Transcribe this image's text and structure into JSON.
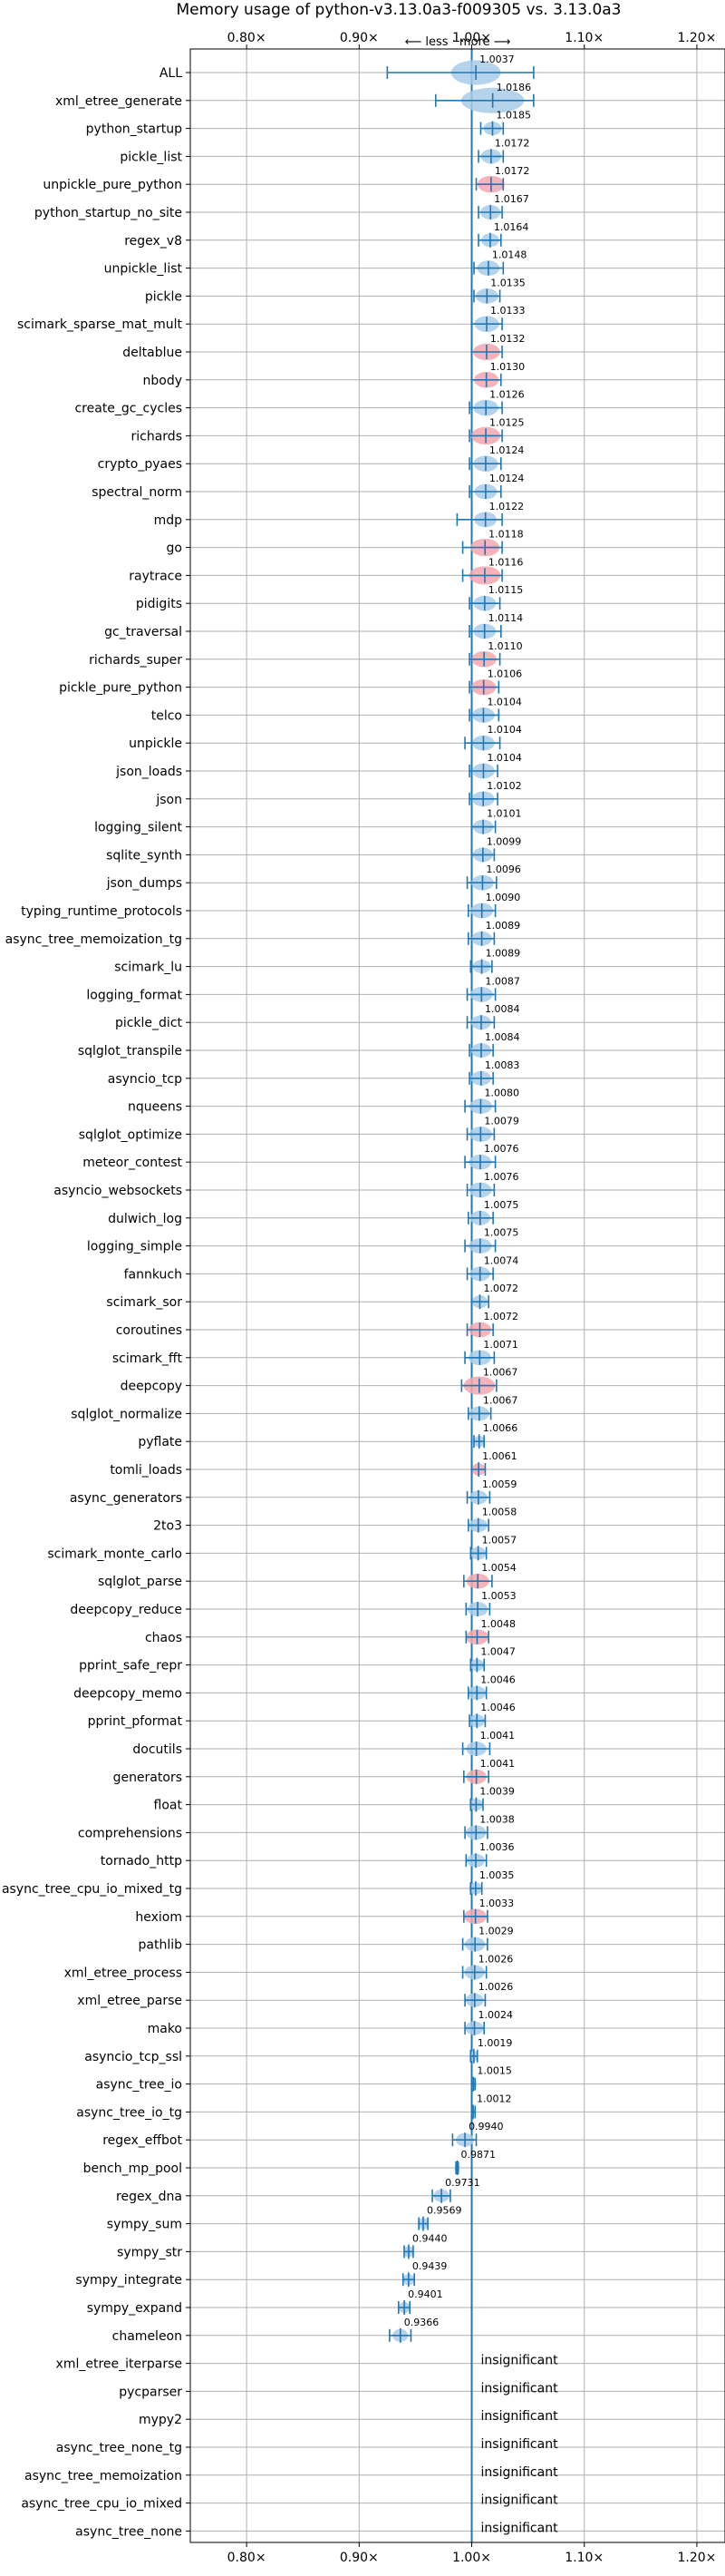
{
  "chart_data": {
    "type": "violin",
    "title": "Memory usage of python-v3.13.0a3-f009305 vs. 3.13.0a3",
    "xlim": [
      0.75,
      1.225
    ],
    "xticks": [
      0.8,
      0.9,
      1.0,
      1.1,
      1.2
    ],
    "xtick_labels": [
      "0.80×",
      "0.90×",
      "1.00×",
      "1.10×",
      "1.20×"
    ],
    "direction_label": "⟵ less · more ⟶",
    "grid": true,
    "colors": {
      "accent": "#1f77b4",
      "violin_normal": "#a8cbe8",
      "violin_highlight": "#f4a6ad",
      "grid": "#b0b0b0",
      "reference_line": "#1f77b4"
    },
    "insignificant_label": "insignificant",
    "benchmarks": [
      {
        "name": "ALL",
        "ratio": 1.0037,
        "low": 0.925,
        "high": 1.055,
        "width": 0.022,
        "color": "normal"
      },
      {
        "name": "xml_etree_generate",
        "ratio": 1.0186,
        "low": 0.968,
        "high": 1.055,
        "width": 0.028,
        "color": "normal"
      },
      {
        "name": "python_startup",
        "ratio": 1.0185,
        "low": 1.008,
        "high": 1.028,
        "width": 0.008,
        "color": "normal"
      },
      {
        "name": "pickle_list",
        "ratio": 1.0172,
        "low": 1.006,
        "high": 1.028,
        "width": 0.009,
        "color": "normal"
      },
      {
        "name": "unpickle_pure_python",
        "ratio": 1.0172,
        "low": 1.004,
        "high": 1.028,
        "width": 0.012,
        "color": "highlight"
      },
      {
        "name": "python_startup_no_site",
        "ratio": 1.0167,
        "low": 1.006,
        "high": 1.027,
        "width": 0.009,
        "color": "normal"
      },
      {
        "name": "regex_v8",
        "ratio": 1.0164,
        "low": 1.006,
        "high": 1.026,
        "width": 0.008,
        "color": "normal"
      },
      {
        "name": "unpickle_list",
        "ratio": 1.0148,
        "low": 1.002,
        "high": 1.028,
        "width": 0.01,
        "color": "normal"
      },
      {
        "name": "pickle",
        "ratio": 1.0135,
        "low": 1.002,
        "high": 1.025,
        "width": 0.01,
        "color": "normal"
      },
      {
        "name": "scimark_sparse_mat_mult",
        "ratio": 1.0133,
        "low": 1.0,
        "high": 1.027,
        "width": 0.011,
        "color": "normal"
      },
      {
        "name": "deltablue",
        "ratio": 1.0132,
        "low": 1.0,
        "high": 1.027,
        "width": 0.012,
        "color": "highlight"
      },
      {
        "name": "nbody",
        "ratio": 1.013,
        "low": 1.0,
        "high": 1.026,
        "width": 0.011,
        "color": "highlight"
      },
      {
        "name": "create_gc_cycles",
        "ratio": 1.0126,
        "low": 0.998,
        "high": 1.027,
        "width": 0.011,
        "color": "normal"
      },
      {
        "name": "richards",
        "ratio": 1.0125,
        "low": 0.998,
        "high": 1.027,
        "width": 0.013,
        "color": "highlight"
      },
      {
        "name": "crypto_pyaes",
        "ratio": 1.0124,
        "low": 0.998,
        "high": 1.026,
        "width": 0.011,
        "color": "normal"
      },
      {
        "name": "spectral_norm",
        "ratio": 1.0124,
        "low": 0.998,
        "high": 1.026,
        "width": 0.01,
        "color": "normal"
      },
      {
        "name": "mdp",
        "ratio": 1.0122,
        "low": 0.987,
        "high": 1.027,
        "width": 0.01,
        "color": "normal"
      },
      {
        "name": "go",
        "ratio": 1.0118,
        "low": 0.992,
        "high": 1.027,
        "width": 0.013,
        "color": "highlight"
      },
      {
        "name": "raytrace",
        "ratio": 1.0116,
        "low": 0.992,
        "high": 1.027,
        "width": 0.014,
        "color": "highlight"
      },
      {
        "name": "pidigits",
        "ratio": 1.0115,
        "low": 0.998,
        "high": 1.025,
        "width": 0.01,
        "color": "normal"
      },
      {
        "name": "gc_traversal",
        "ratio": 1.0114,
        "low": 0.998,
        "high": 1.026,
        "width": 0.01,
        "color": "normal"
      },
      {
        "name": "richards_super",
        "ratio": 1.011,
        "low": 0.998,
        "high": 1.025,
        "width": 0.011,
        "color": "highlight"
      },
      {
        "name": "pickle_pure_python",
        "ratio": 1.0106,
        "low": 0.998,
        "high": 1.024,
        "width": 0.011,
        "color": "highlight"
      },
      {
        "name": "telco",
        "ratio": 1.0104,
        "low": 0.998,
        "high": 1.024,
        "width": 0.01,
        "color": "normal"
      },
      {
        "name": "unpickle",
        "ratio": 1.0104,
        "low": 0.994,
        "high": 1.025,
        "width": 0.01,
        "color": "normal"
      },
      {
        "name": "json_loads",
        "ratio": 1.0104,
        "low": 0.998,
        "high": 1.023,
        "width": 0.01,
        "color": "normal"
      },
      {
        "name": "json",
        "ratio": 1.0102,
        "low": 0.998,
        "high": 1.023,
        "width": 0.01,
        "color": "normal"
      },
      {
        "name": "logging_silent",
        "ratio": 1.0101,
        "low": 1.0,
        "high": 1.021,
        "width": 0.009,
        "color": "normal"
      },
      {
        "name": "sqlite_synth",
        "ratio": 1.0099,
        "low": 1.0,
        "high": 1.02,
        "width": 0.009,
        "color": "normal"
      },
      {
        "name": "json_dumps",
        "ratio": 1.0096,
        "low": 0.996,
        "high": 1.022,
        "width": 0.01,
        "color": "normal"
      },
      {
        "name": "typing_runtime_protocols",
        "ratio": 1.009,
        "low": 0.997,
        "high": 1.021,
        "width": 0.01,
        "color": "normal"
      },
      {
        "name": "async_tree_memoization_tg",
        "ratio": 1.0089,
        "low": 0.997,
        "high": 1.02,
        "width": 0.009,
        "color": "normal"
      },
      {
        "name": "scimark_lu",
        "ratio": 1.0089,
        "low": 0.999,
        "high": 1.018,
        "width": 0.008,
        "color": "normal"
      },
      {
        "name": "logging_format",
        "ratio": 1.0087,
        "low": 0.996,
        "high": 1.021,
        "width": 0.01,
        "color": "normal"
      },
      {
        "name": "pickle_dict",
        "ratio": 1.0084,
        "low": 0.996,
        "high": 1.02,
        "width": 0.009,
        "color": "normal"
      },
      {
        "name": "sqlglot_transpile",
        "ratio": 1.0084,
        "low": 0.998,
        "high": 1.019,
        "width": 0.009,
        "color": "normal"
      },
      {
        "name": "asyncio_tcp",
        "ratio": 1.0083,
        "low": 0.998,
        "high": 1.019,
        "width": 0.009,
        "color": "normal"
      },
      {
        "name": "nqueens",
        "ratio": 1.008,
        "low": 0.994,
        "high": 1.021,
        "width": 0.01,
        "color": "normal"
      },
      {
        "name": "sqlglot_optimize",
        "ratio": 1.0079,
        "low": 0.996,
        "high": 1.02,
        "width": 0.01,
        "color": "normal"
      },
      {
        "name": "meteor_contest",
        "ratio": 1.0076,
        "low": 0.994,
        "high": 1.021,
        "width": 0.01,
        "color": "normal"
      },
      {
        "name": "asyncio_websockets",
        "ratio": 1.0076,
        "low": 0.996,
        "high": 1.02,
        "width": 0.01,
        "color": "normal"
      },
      {
        "name": "dulwich_log",
        "ratio": 1.0075,
        "low": 0.997,
        "high": 1.019,
        "width": 0.009,
        "color": "normal"
      },
      {
        "name": "logging_simple",
        "ratio": 1.0075,
        "low": 0.994,
        "high": 1.021,
        "width": 0.01,
        "color": "normal"
      },
      {
        "name": "fannkuch",
        "ratio": 1.0074,
        "low": 0.996,
        "high": 1.019,
        "width": 0.009,
        "color": "normal"
      },
      {
        "name": "scimark_sor",
        "ratio": 1.0072,
        "low": 1.0,
        "high": 1.015,
        "width": 0.007,
        "color": "normal"
      },
      {
        "name": "coroutines",
        "ratio": 1.0072,
        "low": 0.996,
        "high": 1.019,
        "width": 0.01,
        "color": "highlight"
      },
      {
        "name": "scimark_fft",
        "ratio": 1.0071,
        "low": 0.994,
        "high": 1.02,
        "width": 0.01,
        "color": "normal"
      },
      {
        "name": "deepcopy",
        "ratio": 1.0067,
        "low": 0.991,
        "high": 1.022,
        "width": 0.014,
        "color": "highlight"
      },
      {
        "name": "sqlglot_normalize",
        "ratio": 1.0067,
        "low": 0.997,
        "high": 1.017,
        "width": 0.009,
        "color": "normal"
      },
      {
        "name": "pyflate",
        "ratio": 1.0066,
        "low": 1.002,
        "high": 1.011,
        "width": 0.005,
        "color": "normal"
      },
      {
        "name": "tomli_loads",
        "ratio": 1.0061,
        "low": 1.0,
        "high": 1.012,
        "width": 0.006,
        "color": "highlight"
      },
      {
        "name": "async_generators",
        "ratio": 1.0059,
        "low": 0.996,
        "high": 1.016,
        "width": 0.008,
        "color": "normal"
      },
      {
        "name": "2to3",
        "ratio": 1.0058,
        "low": 0.997,
        "high": 1.015,
        "width": 0.008,
        "color": "normal"
      },
      {
        "name": "scimark_monte_carlo",
        "ratio": 1.0057,
        "low": 0.999,
        "high": 1.013,
        "width": 0.007,
        "color": "normal"
      },
      {
        "name": "sqlglot_parse",
        "ratio": 1.0054,
        "low": 0.993,
        "high": 1.018,
        "width": 0.01,
        "color": "highlight"
      },
      {
        "name": "deepcopy_reduce",
        "ratio": 1.0053,
        "low": 0.995,
        "high": 1.016,
        "width": 0.009,
        "color": "normal"
      },
      {
        "name": "chaos",
        "ratio": 1.0048,
        "low": 0.995,
        "high": 1.015,
        "width": 0.01,
        "color": "highlight"
      },
      {
        "name": "pprint_safe_repr",
        "ratio": 1.0047,
        "low": 0.999,
        "high": 1.011,
        "width": 0.006,
        "color": "normal"
      },
      {
        "name": "deepcopy_memo",
        "ratio": 1.0046,
        "low": 0.997,
        "high": 1.013,
        "width": 0.008,
        "color": "normal"
      },
      {
        "name": "pprint_pformat",
        "ratio": 1.0046,
        "low": 0.998,
        "high": 1.012,
        "width": 0.007,
        "color": "normal"
      },
      {
        "name": "docutils",
        "ratio": 1.0041,
        "low": 0.992,
        "high": 1.016,
        "width": 0.009,
        "color": "normal"
      },
      {
        "name": "generators",
        "ratio": 1.0041,
        "low": 0.993,
        "high": 1.015,
        "width": 0.009,
        "color": "highlight"
      },
      {
        "name": "float",
        "ratio": 1.0039,
        "low": 0.999,
        "high": 1.01,
        "width": 0.006,
        "color": "normal"
      },
      {
        "name": "comprehensions",
        "ratio": 1.0038,
        "low": 0.994,
        "high": 1.014,
        "width": 0.009,
        "color": "normal"
      },
      {
        "name": "tornado_http",
        "ratio": 1.0036,
        "low": 0.995,
        "high": 1.013,
        "width": 0.008,
        "color": "normal"
      },
      {
        "name": "async_tree_cpu_io_mixed_tg",
        "ratio": 1.0035,
        "low": 0.999,
        "high": 1.009,
        "width": 0.006,
        "color": "normal"
      },
      {
        "name": "hexiom",
        "ratio": 1.0033,
        "low": 0.993,
        "high": 1.014,
        "width": 0.01,
        "color": "highlight"
      },
      {
        "name": "pathlib",
        "ratio": 1.0029,
        "low": 0.992,
        "high": 1.014,
        "width": 0.009,
        "color": "normal"
      },
      {
        "name": "xml_etree_process",
        "ratio": 1.0026,
        "low": 0.992,
        "high": 1.013,
        "width": 0.009,
        "color": "normal"
      },
      {
        "name": "xml_etree_parse",
        "ratio": 1.0026,
        "low": 0.994,
        "high": 1.012,
        "width": 0.008,
        "color": "normal"
      },
      {
        "name": "mako",
        "ratio": 1.0024,
        "low": 0.994,
        "high": 1.011,
        "width": 0.008,
        "color": "normal"
      },
      {
        "name": "asyncio_tcp_ssl",
        "ratio": 1.0019,
        "low": 0.999,
        "high": 1.005,
        "width": 0.004,
        "color": "normal"
      },
      {
        "name": "async_tree_io",
        "ratio": 1.0015,
        "low": 1.0,
        "high": 1.003,
        "width": 0.003,
        "color": "normal"
      },
      {
        "name": "async_tree_io_tg",
        "ratio": 1.0012,
        "low": 1.0,
        "high": 1.003,
        "width": 0.002,
        "color": "normal"
      },
      {
        "name": "regex_effbot",
        "ratio": 0.994,
        "low": 0.983,
        "high": 1.004,
        "width": 0.008,
        "color": "normal"
      },
      {
        "name": "bench_mp_pool",
        "ratio": 0.9871,
        "low": 0.986,
        "high": 0.988,
        "width": 0.002,
        "color": "normal"
      },
      {
        "name": "regex_dna",
        "ratio": 0.9731,
        "low": 0.965,
        "high": 0.981,
        "width": 0.007,
        "color": "normal"
      },
      {
        "name": "sympy_sum",
        "ratio": 0.9569,
        "low": 0.953,
        "high": 0.961,
        "width": 0.005,
        "color": "normal"
      },
      {
        "name": "sympy_str",
        "ratio": 0.944,
        "low": 0.94,
        "high": 0.948,
        "width": 0.005,
        "color": "normal"
      },
      {
        "name": "sympy_integrate",
        "ratio": 0.9439,
        "low": 0.939,
        "high": 0.949,
        "width": 0.005,
        "color": "normal"
      },
      {
        "name": "sympy_expand",
        "ratio": 0.9401,
        "low": 0.935,
        "high": 0.945,
        "width": 0.005,
        "color": "normal"
      },
      {
        "name": "chameleon",
        "ratio": 0.9366,
        "low": 0.927,
        "high": 0.946,
        "width": 0.007,
        "color": "normal"
      },
      {
        "name": "xml_etree_iterparse",
        "insignificant": true
      },
      {
        "name": "pycparser",
        "insignificant": true
      },
      {
        "name": "mypy2",
        "insignificant": true
      },
      {
        "name": "async_tree_none_tg",
        "insignificant": true
      },
      {
        "name": "async_tree_memoization",
        "insignificant": true
      },
      {
        "name": "async_tree_cpu_io_mixed",
        "insignificant": true
      },
      {
        "name": "async_tree_none",
        "insignificant": true
      }
    ]
  }
}
